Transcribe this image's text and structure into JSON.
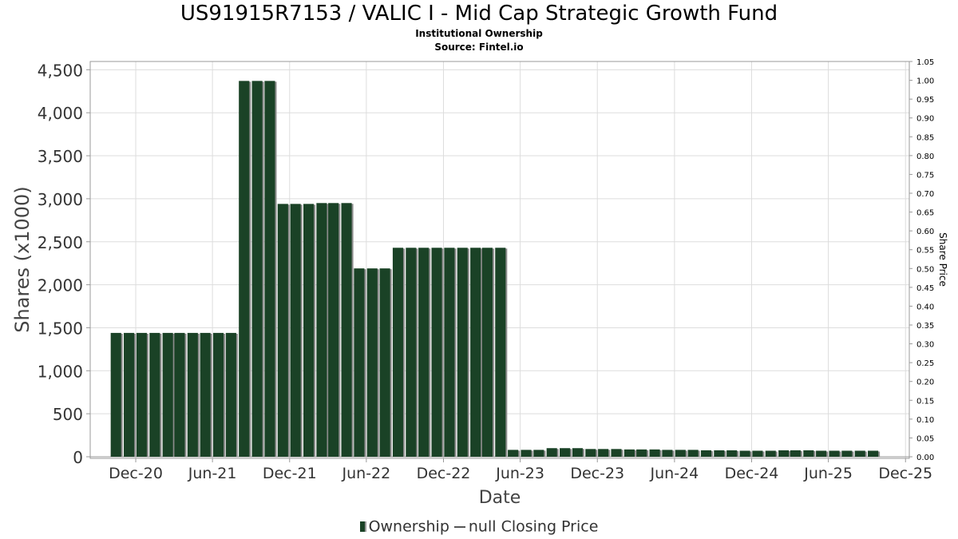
{
  "title": "US91915R7153 / VALIC I - Mid Cap Strategic Growth Fund",
  "subtitle": "Institutional Ownership",
  "source": "Source: Fintel.io",
  "colors": {
    "bar": "#1a4226",
    "bar_shadow": "#8c8c8c",
    "grid": "#dddddd",
    "axis": "#999999"
  },
  "chart_data": {
    "type": "bar",
    "xlabel": "Date",
    "ylabel": "Shares (x1000)",
    "y2label": "Share Price",
    "ylim": [
      0,
      4600
    ],
    "y2lim": [
      0,
      1.05
    ],
    "x_range": [
      "2020-08-15",
      "2025-12-10"
    ],
    "grid": true,
    "legend_position": "bottom",
    "yticks": [
      "0",
      "500",
      "1,000",
      "1,500",
      "2,000",
      "2,500",
      "3,000",
      "3,500",
      "4,000",
      "4,500"
    ],
    "y2ticks": [
      "0.00",
      "0.05",
      "0.10",
      "0.15",
      "0.20",
      "0.25",
      "0.30",
      "0.35",
      "0.40",
      "0.45",
      "0.50",
      "0.55",
      "0.60",
      "0.65",
      "0.70",
      "0.75",
      "0.80",
      "0.85",
      "0.90",
      "0.95",
      "1.00",
      "1.05"
    ],
    "xticks": [
      {
        "date": "2020-12-01",
        "label": "Dec-20"
      },
      {
        "date": "2021-06-01",
        "label": "Jun-21"
      },
      {
        "date": "2021-12-01",
        "label": "Dec-21"
      },
      {
        "date": "2022-06-01",
        "label": "Jun-22"
      },
      {
        "date": "2022-12-01",
        "label": "Dec-22"
      },
      {
        "date": "2023-06-01",
        "label": "Jun-23"
      },
      {
        "date": "2023-12-01",
        "label": "Dec-23"
      },
      {
        "date": "2024-06-01",
        "label": "Jun-24"
      },
      {
        "date": "2024-12-01",
        "label": "Dec-24"
      },
      {
        "date": "2025-06-01",
        "label": "Jun-25"
      },
      {
        "date": "2025-12-01",
        "label": "Dec-25"
      }
    ],
    "series": [
      {
        "name": "Ownership",
        "points": [
          {
            "date": "2020-10-15",
            "value": 1440
          },
          {
            "date": "2020-11-15",
            "value": 1440
          },
          {
            "date": "2020-12-15",
            "value": 1440
          },
          {
            "date": "2021-01-15",
            "value": 1440
          },
          {
            "date": "2021-02-15",
            "value": 1440
          },
          {
            "date": "2021-03-15",
            "value": 1440
          },
          {
            "date": "2021-04-15",
            "value": 1440
          },
          {
            "date": "2021-05-15",
            "value": 1440
          },
          {
            "date": "2021-06-15",
            "value": 1440
          },
          {
            "date": "2021-07-15",
            "value": 1440
          },
          {
            "date": "2021-08-15",
            "value": 4370
          },
          {
            "date": "2021-09-15",
            "value": 4370
          },
          {
            "date": "2021-10-15",
            "value": 4370
          },
          {
            "date": "2021-11-15",
            "value": 2940
          },
          {
            "date": "2021-12-15",
            "value": 2940
          },
          {
            "date": "2022-01-15",
            "value": 2940
          },
          {
            "date": "2022-02-15",
            "value": 2950
          },
          {
            "date": "2022-03-15",
            "value": 2950
          },
          {
            "date": "2022-04-15",
            "value": 2950
          },
          {
            "date": "2022-05-15",
            "value": 2190
          },
          {
            "date": "2022-06-15",
            "value": 2190
          },
          {
            "date": "2022-07-15",
            "value": 2190
          },
          {
            "date": "2022-08-15",
            "value": 2430
          },
          {
            "date": "2022-09-15",
            "value": 2430
          },
          {
            "date": "2022-10-15",
            "value": 2430
          },
          {
            "date": "2022-11-15",
            "value": 2430
          },
          {
            "date": "2022-12-15",
            "value": 2430
          },
          {
            "date": "2023-01-15",
            "value": 2430
          },
          {
            "date": "2023-02-15",
            "value": 2430
          },
          {
            "date": "2023-03-15",
            "value": 2430
          },
          {
            "date": "2023-04-15",
            "value": 2430
          },
          {
            "date": "2023-05-15",
            "value": 80
          },
          {
            "date": "2023-06-15",
            "value": 80
          },
          {
            "date": "2023-07-15",
            "value": 80
          },
          {
            "date": "2023-08-15",
            "value": 100
          },
          {
            "date": "2023-09-15",
            "value": 100
          },
          {
            "date": "2023-10-15",
            "value": 100
          },
          {
            "date": "2023-11-15",
            "value": 90
          },
          {
            "date": "2023-12-15",
            "value": 90
          },
          {
            "date": "2024-01-15",
            "value": 90
          },
          {
            "date": "2024-02-15",
            "value": 85
          },
          {
            "date": "2024-03-15",
            "value": 85
          },
          {
            "date": "2024-04-15",
            "value": 85
          },
          {
            "date": "2024-05-15",
            "value": 80
          },
          {
            "date": "2024-06-15",
            "value": 80
          },
          {
            "date": "2024-07-15",
            "value": 80
          },
          {
            "date": "2024-08-15",
            "value": 75
          },
          {
            "date": "2024-09-15",
            "value": 75
          },
          {
            "date": "2024-10-15",
            "value": 75
          },
          {
            "date": "2024-11-15",
            "value": 70
          },
          {
            "date": "2024-12-15",
            "value": 70
          },
          {
            "date": "2025-01-15",
            "value": 70
          },
          {
            "date": "2025-02-15",
            "value": 75
          },
          {
            "date": "2025-03-15",
            "value": 75
          },
          {
            "date": "2025-04-15",
            "value": 75
          },
          {
            "date": "2025-05-15",
            "value": 70
          },
          {
            "date": "2025-06-15",
            "value": 70
          },
          {
            "date": "2025-07-15",
            "value": 70
          },
          {
            "date": "2025-08-15",
            "value": 70
          },
          {
            "date": "2025-09-15",
            "value": 70
          }
        ]
      },
      {
        "name": "null Closing Price",
        "points": []
      }
    ]
  }
}
